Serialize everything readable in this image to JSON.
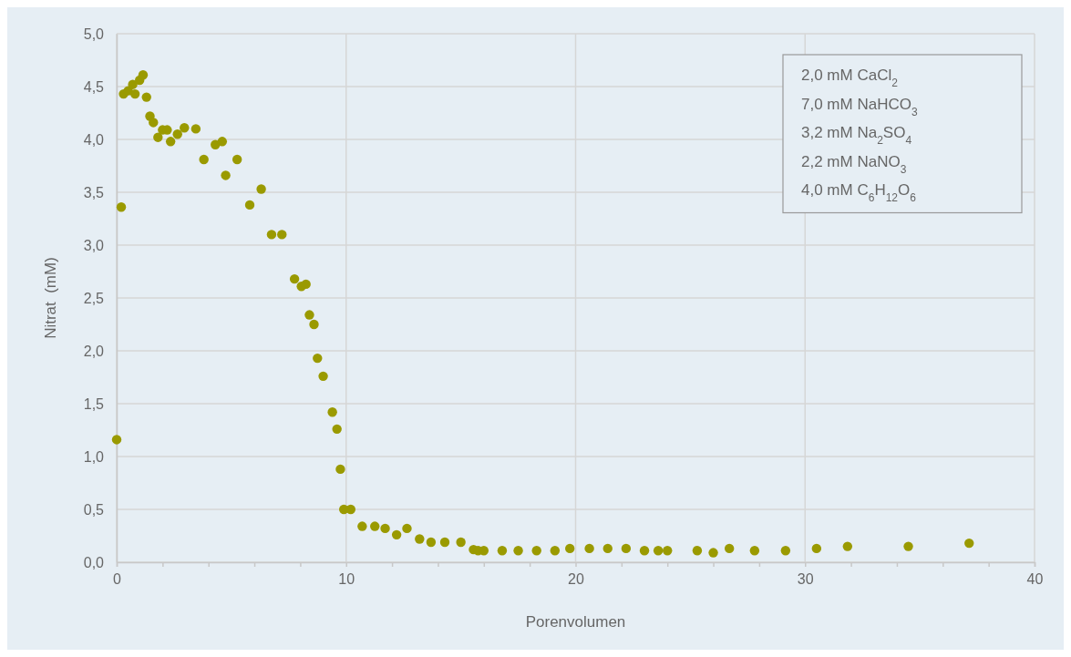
{
  "chart_data": {
    "type": "scatter",
    "xlabel": "Porenvolumen",
    "ylabel": "Nitrat  (mM)",
    "annotations": [
      "2,0 mM CaCl$_{2}$",
      "7,0 mM NaHCO$_{3}$",
      "3,2 mM Na$_{2}$SO$_{4}$",
      "2,2 mM NaNO$_{3}$",
      "4,0 mM C$_{6}$H$_{12}$O$_{6}$"
    ],
    "xlim": [
      0,
      40
    ],
    "xticks": [
      0,
      {
        "value": 2,
        "label": null
      },
      {
        "value": 4,
        "label": null
      },
      {
        "value": 6,
        "label": null
      },
      {
        "value": 8,
        "label": null
      },
      10,
      {
        "value": 12,
        "label": null
      },
      {
        "value": 14,
        "label": null
      },
      {
        "value": 16,
        "label": null
      },
      {
        "value": 18,
        "label": null
      },
      20,
      {
        "value": 22,
        "label": null
      },
      {
        "value": 24,
        "label": null
      },
      {
        "value": 26,
        "label": null
      },
      {
        "value": 28,
        "label": null
      },
      30,
      {
        "value": 32,
        "label": null
      },
      {
        "value": 34,
        "label": null
      },
      {
        "value": 36,
        "label": null
      },
      {
        "value": 38,
        "label": null
      },
      40
    ],
    "ylim": [
      0,
      5
    ],
    "yticks": [
      {
        "value": 0,
        "label": "0,0"
      },
      {
        "value": 0.5,
        "label": "0,5"
      },
      {
        "value": 1,
        "label": "1,0"
      },
      {
        "value": 1.5,
        "label": "1,5"
      },
      {
        "value": 2,
        "label": "2,0"
      },
      {
        "value": 2.5,
        "label": "2,5"
      },
      {
        "value": 3,
        "label": "3,0"
      },
      {
        "value": 3.5,
        "label": "3,5"
      },
      {
        "value": 4,
        "label": "4,0"
      },
      {
        "value": 4.5,
        "label": "4,5"
      },
      {
        "value": 5,
        "label": "5,0"
      }
    ],
    "grid": true,
    "marker": "circle",
    "series": [
      {
        "color": "#9a9a00",
        "x": [
          0,
          0.2,
          0.3,
          0.5,
          0.7,
          0.8,
          1.0,
          1.15,
          1.3,
          1.45,
          1.6,
          1.8,
          2.0,
          2.2,
          2.35,
          2.65,
          2.95,
          3.45,
          3.8,
          4.3,
          4.6,
          4.75,
          5.25,
          5.8,
          6.3,
          6.75,
          7.2,
          7.75,
          8.05,
          8.25,
          8.4,
          8.6,
          8.75,
          9.0,
          9.4,
          9.6,
          9.75,
          9.9,
          10.2,
          10.7,
          11.25,
          11.7,
          12.2,
          12.65,
          13.2,
          13.7,
          14.3,
          15.0,
          15.55,
          15.75,
          16.0,
          16.8,
          17.5,
          18.3,
          19.1,
          19.75,
          20.6,
          21.4,
          22.2,
          23.0,
          23.6,
          24.0,
          25.3,
          26.0,
          26.7,
          27.8,
          29.15,
          30.5,
          31.85,
          34.5,
          37.15
        ],
        "values": [
          1.16,
          3.36,
          4.43,
          4.46,
          4.52,
          4.43,
          4.56,
          4.61,
          4.4,
          4.22,
          4.16,
          4.02,
          4.09,
          4.09,
          3.98,
          4.05,
          4.11,
          4.1,
          3.81,
          3.95,
          3.98,
          3.66,
          3.81,
          3.38,
          3.53,
          3.1,
          3.1,
          2.68,
          2.61,
          2.63,
          2.34,
          2.25,
          1.93,
          1.76,
          1.42,
          1.26,
          0.88,
          0.5,
          0.5,
          0.34,
          0.34,
          0.32,
          0.26,
          0.32,
          0.22,
          0.19,
          0.19,
          0.19,
          0.12,
          0.11,
          0.11,
          0.11,
          0.11,
          0.11,
          0.11,
          0.13,
          0.13,
          0.13,
          0.13,
          0.11,
          0.11,
          0.11,
          0.11,
          0.09,
          0.13,
          0.11,
          0.11,
          0.13,
          0.15,
          0.15,
          0.18
        ]
      }
    ]
  }
}
